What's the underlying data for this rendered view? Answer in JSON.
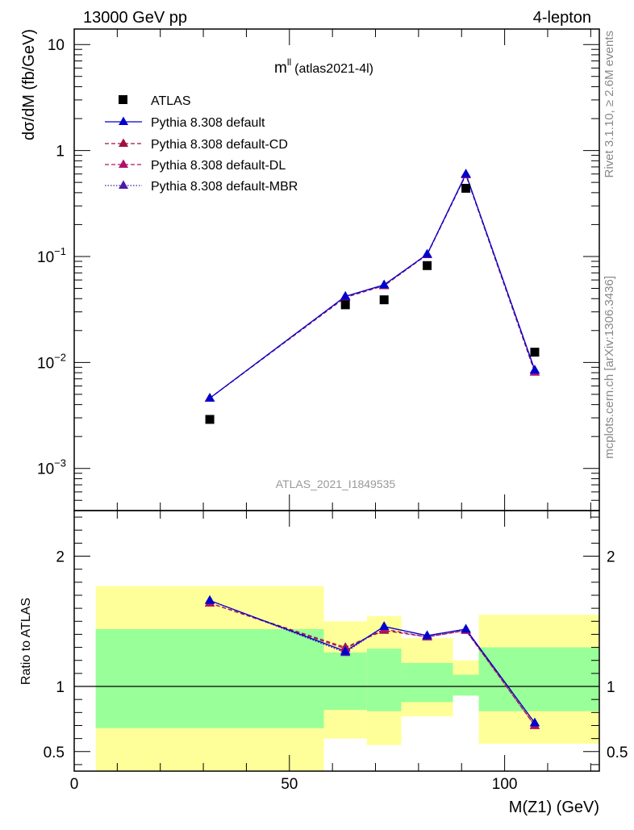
{
  "header": {
    "left": "13000 GeV pp",
    "right": "4-lepton"
  },
  "side_labels": {
    "rivet": "Rivet 3.1.10, ≥ 2.6M events",
    "mcplots": "mcplots.cern.ch [arXiv:1306.3436]"
  },
  "chart_data": {
    "type": "scatter",
    "title_main": "m",
    "title_sup": "ll",
    "title_sub": "(atlas2021-4l)",
    "watermark": "ATLAS_2021_I1849535",
    "x_axis": {
      "label": "M(Z1) (GeV)",
      "range": [
        0,
        122
      ],
      "ticks": [
        0,
        50,
        100
      ],
      "tick_labels": [
        "0",
        "50",
        "100"
      ]
    },
    "main_panel": {
      "ylabel": "dσ/dM (fb/GeV)",
      "yscale": "log",
      "ylim": [
        0.0004,
        14
      ],
      "y_ticks": [
        {
          "value": 10,
          "base": "10",
          "exp": ""
        },
        {
          "value": 1,
          "base": "1",
          "exp": ""
        },
        {
          "value": 0.1,
          "base": "10",
          "exp": "−1"
        },
        {
          "value": 0.01,
          "base": "10",
          "exp": "−2"
        },
        {
          "value": 0.001,
          "base": "10",
          "exp": "−3"
        }
      ],
      "data": {
        "name": "ATLAS",
        "x": [
          31.5,
          63,
          72,
          82,
          91,
          107
        ],
        "y": [
          0.0029,
          0.035,
          0.039,
          0.082,
          0.44,
          0.0125
        ]
      },
      "series": [
        {
          "name": "Pythia 8.308 default",
          "color": "#0000cc",
          "dash": "solid",
          "x": [
            31.5,
            63,
            72,
            82,
            91,
            107
          ],
          "y": [
            0.0046,
            0.042,
            0.054,
            0.105,
            0.6,
            0.0085
          ]
        },
        {
          "name": "Pythia 8.308 default-CD",
          "color": "#a0103c",
          "dash": "dashed",
          "x": [
            31.5,
            63,
            72,
            82,
            91,
            107
          ],
          "y": [
            0.0046,
            0.042,
            0.053,
            0.104,
            0.59,
            0.0081
          ]
        },
        {
          "name": "Pythia 8.308 default-DL",
          "color": "#b0106a",
          "dash": "dashed",
          "x": [
            31.5,
            63,
            72,
            82,
            91,
            107
          ],
          "y": [
            0.0046,
            0.041,
            0.053,
            0.104,
            0.59,
            0.0081
          ]
        },
        {
          "name": "Pythia 8.308 default-MBR",
          "color": "#4b1aa8",
          "dash": "dotted",
          "x": [
            31.5,
            63,
            72,
            82,
            91,
            107
          ],
          "y": [
            0.0046,
            0.042,
            0.054,
            0.105,
            0.6,
            0.0084
          ]
        }
      ]
    },
    "ratio_panel": {
      "ylabel": "Ratio to ATLAS",
      "ylim": [
        0.35,
        2.35
      ],
      "y_ticks": [
        0.5,
        1,
        2
      ],
      "y_tick_labels": [
        "0.5",
        "1",
        "2"
      ],
      "reference": 1,
      "bands": [
        {
          "x": [
            5,
            58
          ],
          "green": [
            0.68,
            1.44
          ],
          "yellow": [
            0.35,
            1.77
          ]
        },
        {
          "x": [
            58,
            68
          ],
          "green": [
            0.82,
            1.26
          ],
          "yellow": [
            0.6,
            1.5
          ]
        },
        {
          "x": [
            68,
            76
          ],
          "green": [
            0.81,
            1.29
          ],
          "yellow": [
            0.55,
            1.54
          ]
        },
        {
          "x": [
            76,
            88
          ],
          "green": [
            0.88,
            1.18
          ],
          "yellow": [
            0.77,
            1.37
          ]
        },
        {
          "x": [
            88,
            94
          ],
          "green": [
            0.93,
            1.09
          ],
          "yellow": [
            0.93,
            1.2
          ]
        },
        {
          "x": [
            94,
            124
          ],
          "green": [
            0.81,
            1.3
          ],
          "yellow": [
            0.56,
            1.55
          ]
        }
      ],
      "series": [
        {
          "name": "Pythia 8.308 default",
          "x": [
            31.5,
            63,
            72,
            82,
            91,
            107
          ],
          "y": [
            1.66,
            1.27,
            1.46,
            1.39,
            1.44,
            0.72
          ]
        },
        {
          "name": "Pythia 8.308 default-CD",
          "x": [
            31.5,
            63,
            72,
            82,
            91,
            107
          ],
          "y": [
            1.64,
            1.3,
            1.43,
            1.38,
            1.43,
            0.7
          ]
        },
        {
          "name": "Pythia 8.308 default-DL",
          "x": [
            31.5,
            63,
            72,
            82,
            91,
            107
          ],
          "y": [
            1.64,
            1.29,
            1.44,
            1.38,
            1.43,
            0.7
          ]
        },
        {
          "name": "Pythia 8.308 default-MBR",
          "x": [
            31.5,
            63,
            72,
            82,
            91,
            107
          ],
          "y": [
            1.66,
            1.26,
            1.46,
            1.39,
            1.44,
            0.72
          ]
        }
      ]
    },
    "colors": {
      "green_band": "#99ff99",
      "yellow_band": "#ffff99",
      "data_marker": "#000000"
    }
  }
}
